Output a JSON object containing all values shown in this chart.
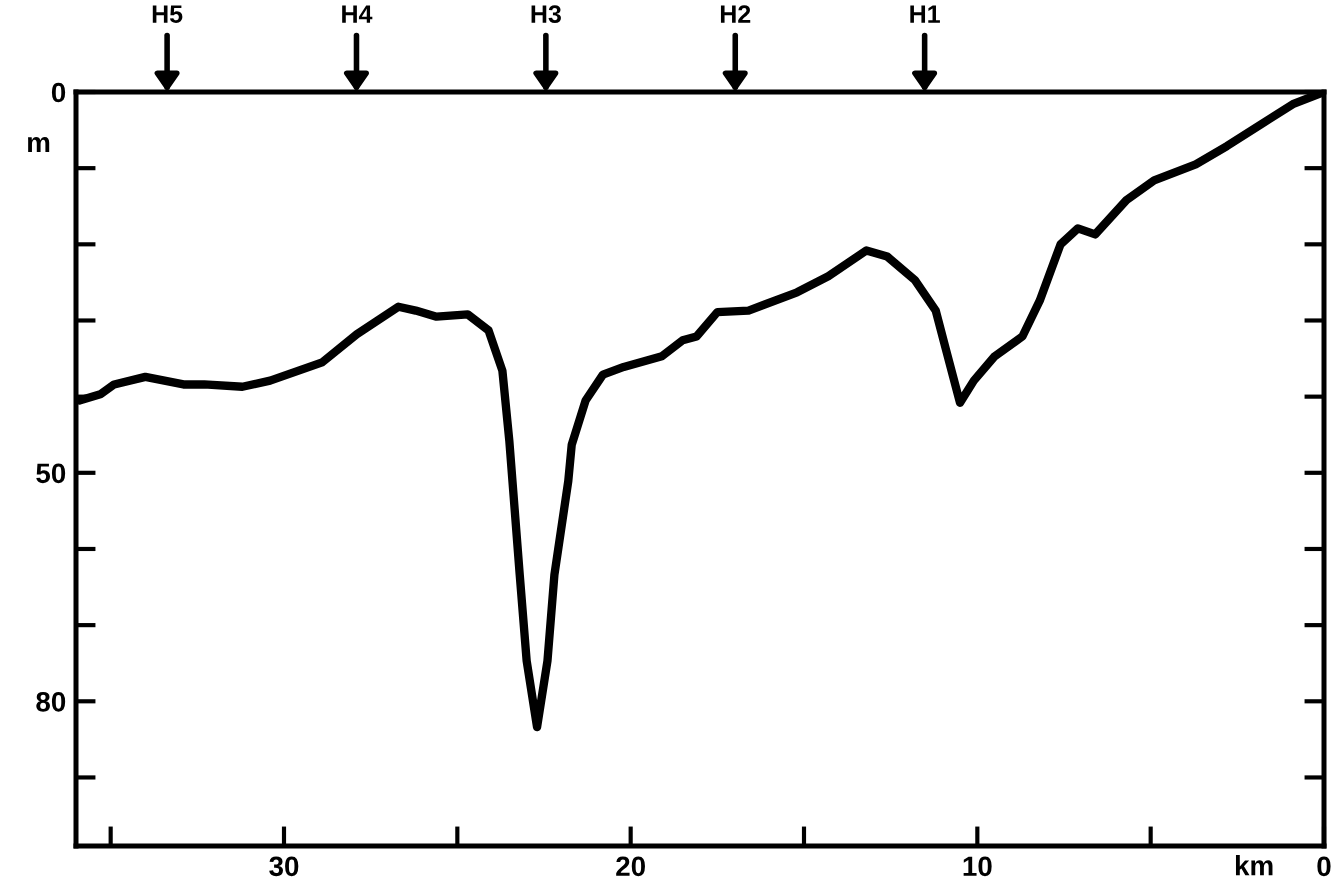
{
  "chart_data": {
    "type": "line",
    "xlabel": "km",
    "ylabel": "m",
    "x": [
      35.9,
      35.3,
      34.9,
      34.0,
      32.9,
      32.3,
      31.2,
      30.4,
      28.9,
      27.9,
      26.7,
      26.2,
      25.6,
      24.7,
      24.1,
      23.7,
      23.5,
      23.2,
      23.0,
      22.7,
      22.4,
      22.2,
      21.8,
      21.7,
      21.3,
      20.8,
      20.2,
      19.1,
      18.5,
      18.1,
      17.5,
      16.6,
      15.2,
      14.3,
      13.2,
      12.6,
      11.8,
      11.2,
      10.9,
      10.5,
      10.1,
      9.5,
      8.7,
      8.2,
      7.6,
      7.1,
      6.6,
      5.7,
      4.9,
      3.7,
      2.8,
      1.8,
      0.9,
      0
    ],
    "series": [
      {
        "color": "#000000",
        "values": [
          40.5,
          39.7,
          38.4,
          37.4,
          38.4,
          38.4,
          38.7,
          37.9,
          35.5,
          31.8,
          28.2,
          28.7,
          29.5,
          29.2,
          31.3,
          36.6,
          45.8,
          63.4,
          74.7,
          83.4,
          74.7,
          63.4,
          51.1,
          46.3,
          40.5,
          37.1,
          36.1,
          34.7,
          32.6,
          32.1,
          28.9,
          28.7,
          26.3,
          24.2,
          20.8,
          21.6,
          24.7,
          28.7,
          33.9,
          40.8,
          37.9,
          34.7,
          32.1,
          27.4,
          20.0,
          17.9,
          18.7,
          14.2,
          11.6,
          9.5,
          7.1,
          4.2,
          1.6,
          0
        ]
      }
    ],
    "xlim": [
      36,
      0
    ],
    "xticks": [
      {
        "value": 35,
        "label": null
      },
      30,
      {
        "value": 25,
        "label": null
      },
      20,
      {
        "value": 15,
        "label": null
      },
      10,
      {
        "value": 5,
        "label": null
      },
      0
    ],
    "ylim": [
      99,
      0
    ],
    "yticks": [
      0,
      {
        "value": 10,
        "label": null
      },
      {
        "value": 20,
        "label": null
      },
      {
        "value": 30,
        "label": null
      },
      {
        "value": 40,
        "label": null
      },
      50,
      {
        "value": 60,
        "label": null
      },
      {
        "value": 70,
        "label": null
      },
      80,
      {
        "value": 90,
        "label": null
      }
    ],
    "annotations": [
      "H5",
      "H4",
      "H3",
      "H2",
      "H1"
    ],
    "grid": false,
    "legend": false,
    "marker": "none",
    "line_style": "solid"
  }
}
